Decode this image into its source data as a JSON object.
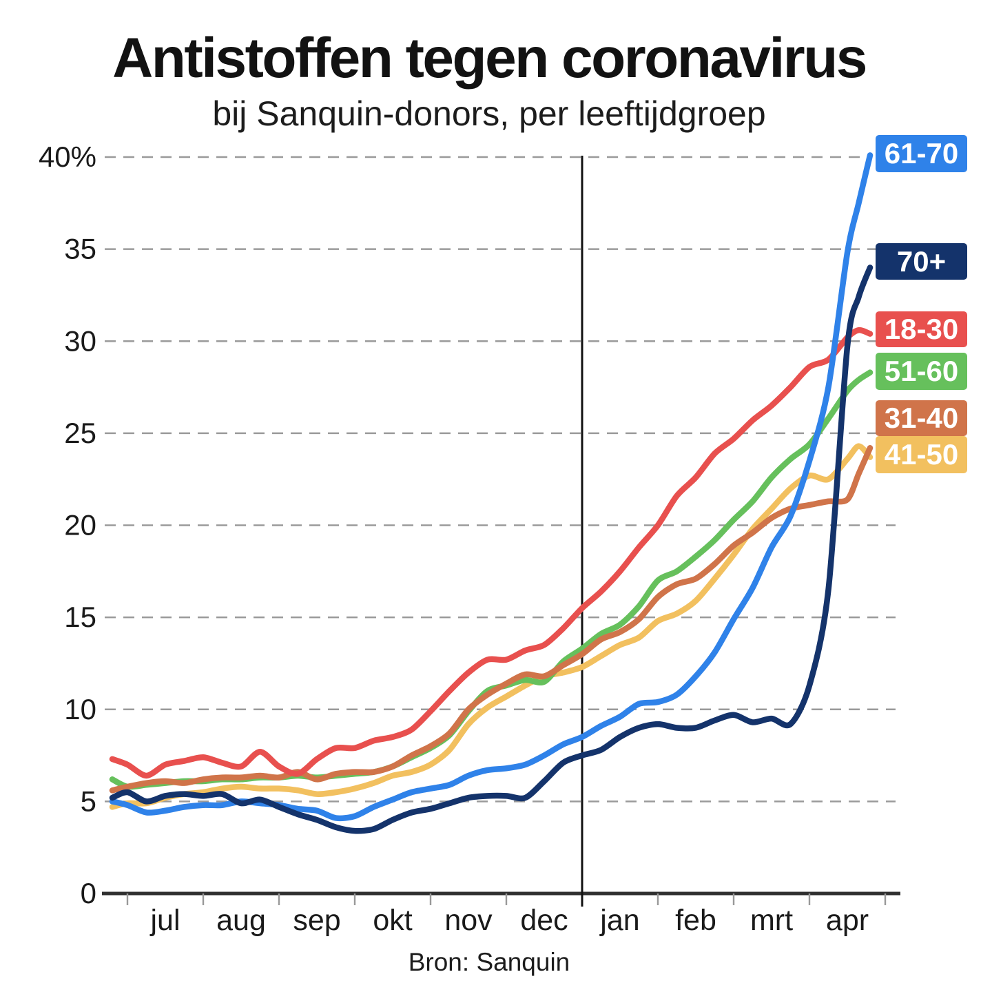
{
  "chart_data": {
    "type": "line",
    "title": "Antistoffen tegen coronavirus",
    "subtitle": "bij Sanquin-donors, per leeftijdgroep",
    "source": "Bron: Sanquin",
    "y_unit": "%",
    "ylim": [
      0,
      40
    ],
    "y_ticks": [
      0,
      5,
      10,
      15,
      20,
      25,
      30,
      35,
      40
    ],
    "y_tick_labels": [
      "0",
      "5",
      "10",
      "15",
      "20",
      "25",
      "30",
      "35",
      "40%"
    ],
    "x_unit": "months since 1 jul",
    "x_tick_labels": [
      "jul",
      "aug",
      "sep",
      "okt",
      "nov",
      "dec",
      "jan",
      "feb",
      "mrt",
      "apr"
    ],
    "grid": "horizontal dashed",
    "vline_x": 6,
    "legend_position": "right edge, near line endpoints",
    "x": [
      -0.2,
      0,
      0.25,
      0.5,
      0.75,
      1,
      1.25,
      1.5,
      1.75,
      2,
      2.25,
      2.5,
      2.75,
      3,
      3.25,
      3.5,
      3.75,
      4,
      4.25,
      4.5,
      4.75,
      5,
      5.25,
      5.5,
      5.75,
      6,
      6.25,
      6.5,
      6.75,
      7,
      7.25,
      7.5,
      7.75,
      8,
      8.25,
      8.5,
      8.75,
      9,
      9.25,
      9.5,
      9.65,
      9.8
    ],
    "series": [
      {
        "name": "61-70",
        "color": "#2f82e9",
        "values": [
          5.0,
          4.8,
          4.4,
          4.5,
          4.7,
          4.8,
          4.8,
          5.0,
          4.9,
          4.8,
          4.6,
          4.5,
          4.1,
          4.2,
          4.7,
          5.1,
          5.5,
          5.7,
          5.9,
          6.4,
          6.7,
          6.8,
          7.0,
          7.5,
          8.1,
          8.5,
          9.1,
          9.6,
          10.3,
          10.4,
          10.8,
          11.8,
          13.1,
          14.9,
          16.6,
          18.8,
          20.5,
          23.5,
          27.5,
          34.8,
          37.5,
          40.1
        ]
      },
      {
        "name": "70+",
        "color": "#14336b",
        "values": [
          5.2,
          5.5,
          5.0,
          5.3,
          5.4,
          5.3,
          5.4,
          4.9,
          5.1,
          4.7,
          4.3,
          4.0,
          3.6,
          3.4,
          3.5,
          4.0,
          4.4,
          4.6,
          4.9,
          5.2,
          5.3,
          5.3,
          5.2,
          6.1,
          7.1,
          7.5,
          7.8,
          8.5,
          9.0,
          9.2,
          9.0,
          9.0,
          9.4,
          9.7,
          9.3,
          9.5,
          9.2,
          11.3,
          16.5,
          29.7,
          32.4,
          34.0
        ]
      },
      {
        "name": "18-30",
        "color": "#e8504e",
        "values": [
          7.3,
          7.0,
          6.4,
          7.0,
          7.2,
          7.4,
          7.1,
          6.9,
          7.7,
          6.9,
          6.5,
          7.3,
          7.9,
          7.9,
          8.3,
          8.5,
          8.9,
          9.9,
          11.0,
          12.0,
          12.7,
          12.7,
          13.2,
          13.5,
          14.4,
          15.5,
          16.4,
          17.5,
          18.8,
          20.0,
          21.6,
          22.6,
          23.9,
          24.7,
          25.7,
          26.5,
          27.5,
          28.6,
          29.0,
          30.2,
          30.6,
          30.4
        ]
      },
      {
        "name": "51-60",
        "color": "#66c05c",
        "values": [
          6.2,
          5.8,
          5.9,
          6.0,
          6.1,
          6.1,
          6.2,
          6.2,
          6.3,
          6.3,
          6.4,
          6.3,
          6.4,
          6.5,
          6.6,
          6.9,
          7.4,
          7.9,
          8.6,
          9.9,
          11.0,
          11.3,
          11.6,
          11.5,
          12.6,
          13.3,
          14.1,
          14.6,
          15.6,
          17.0,
          17.5,
          18.3,
          19.2,
          20.3,
          21.3,
          22.6,
          23.6,
          24.4,
          25.8,
          27.3,
          27.9,
          28.3
        ]
      },
      {
        "name": "31-40",
        "color": "#d0744a",
        "values": [
          5.6,
          5.8,
          6.0,
          6.1,
          6.0,
          6.2,
          6.3,
          6.3,
          6.4,
          6.3,
          6.6,
          6.2,
          6.5,
          6.6,
          6.6,
          6.9,
          7.5,
          8.0,
          8.7,
          10.0,
          10.8,
          11.4,
          11.9,
          11.8,
          12.4,
          13.0,
          13.8,
          14.2,
          14.9,
          16.1,
          16.8,
          17.1,
          17.9,
          18.9,
          19.6,
          20.4,
          20.9,
          21.1,
          21.3,
          21.4,
          22.8,
          24.2
        ]
      },
      {
        "name": "41-50",
        "color": "#f2c05f",
        "values": [
          4.7,
          4.9,
          4.9,
          5.2,
          5.4,
          5.5,
          5.7,
          5.8,
          5.7,
          5.7,
          5.6,
          5.4,
          5.5,
          5.7,
          6.0,
          6.4,
          6.6,
          7.0,
          7.8,
          9.2,
          10.1,
          10.7,
          11.3,
          11.8,
          12.0,
          12.3,
          12.9,
          13.5,
          13.9,
          14.8,
          15.2,
          15.9,
          17.1,
          18.4,
          19.8,
          20.9,
          22.0,
          22.7,
          22.5,
          23.6,
          24.3,
          23.7
        ]
      }
    ],
    "draw_order": [
      "41-50",
      "51-60",
      "31-40",
      "18-30",
      "61-70",
      "70+"
    ]
  }
}
